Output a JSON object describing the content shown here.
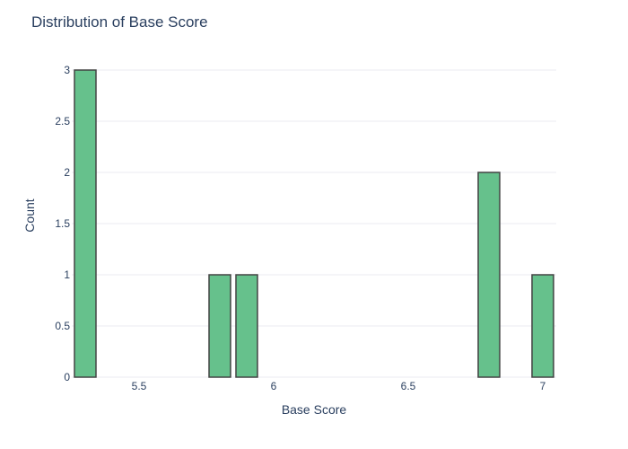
{
  "chart_data": {
    "type": "bar",
    "title": "Distribution of Base Score",
    "xlabel": "Base Score",
    "ylabel": "Count",
    "x": [
      5.3,
      5.8,
      5.9,
      6.8,
      7.0
    ],
    "values": [
      3,
      1,
      1,
      2,
      1
    ],
    "bin_width": 0.1,
    "xlim": [
      5.25,
      7.05
    ],
    "ylim": [
      0,
      3
    ],
    "xticks": [
      5.5,
      6,
      6.5,
      7
    ],
    "xtick_labels": [
      "5.5",
      "6",
      "6.5",
      "7"
    ],
    "yticks": [
      0,
      0.5,
      1,
      1.5,
      2,
      2.5,
      3
    ],
    "ytick_labels": [
      "0",
      "0.5",
      "1",
      "1.5",
      "2",
      "2.5",
      "3"
    ],
    "grid": true,
    "bar_color": "#66c18c",
    "bar_outline_color": "#444444"
  }
}
